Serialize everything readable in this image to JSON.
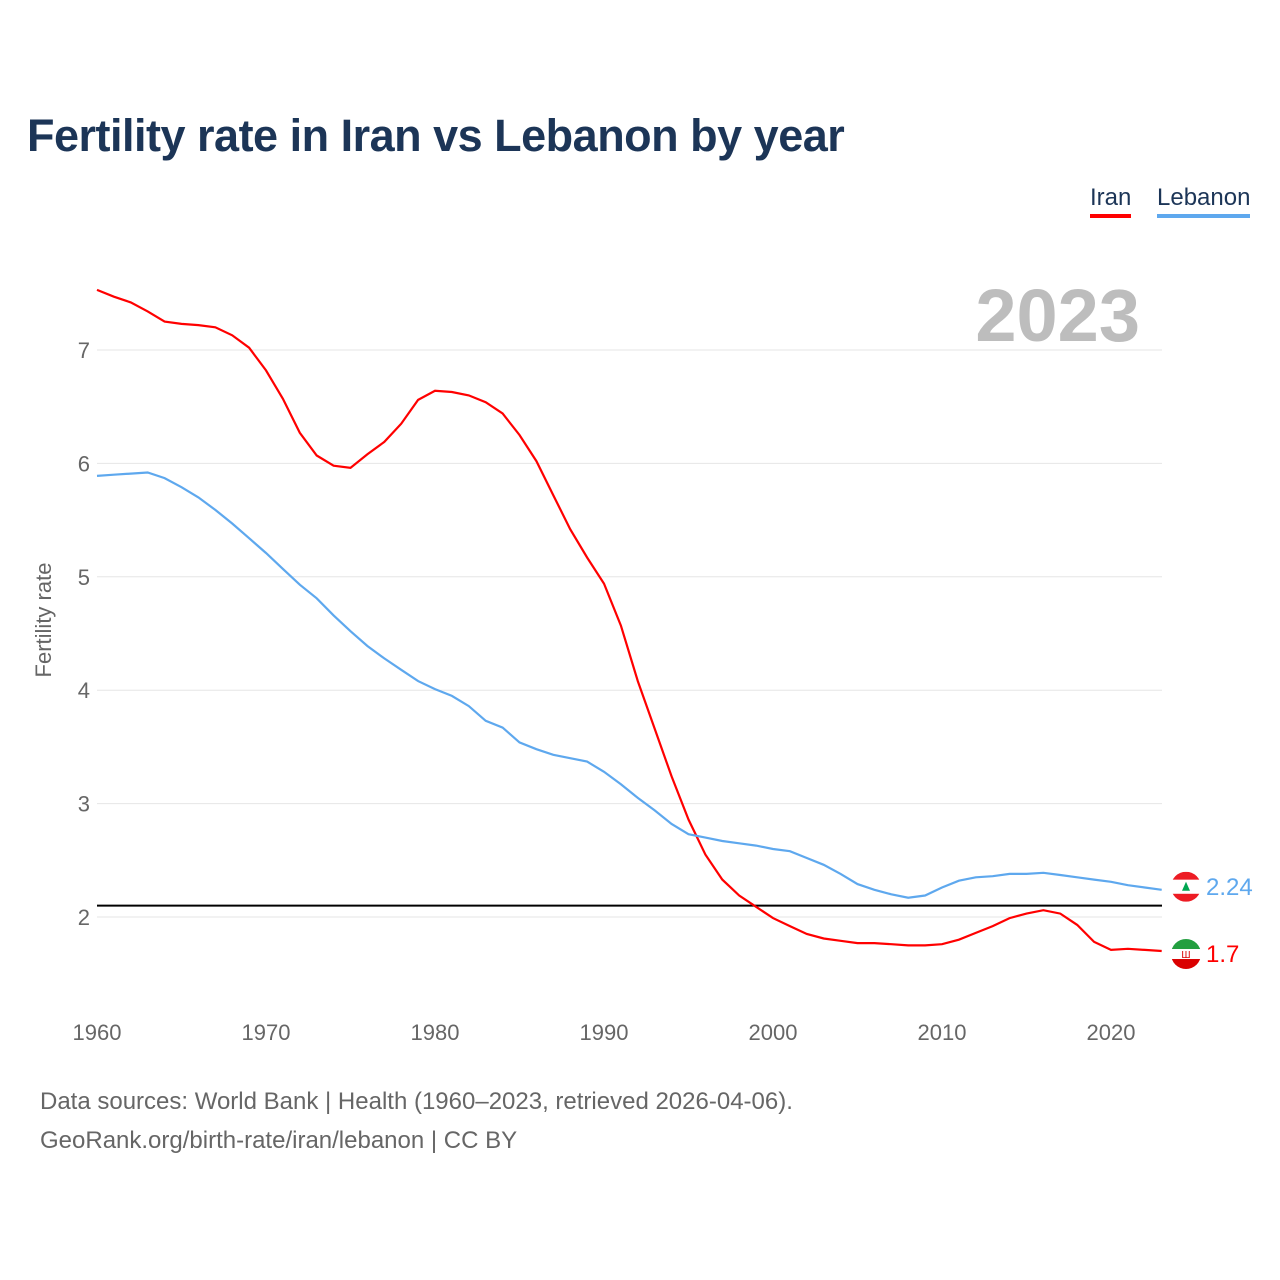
{
  "title": "Fertility rate in Iran vs Lebanon by year",
  "legend": [
    "Iran",
    "Lebanon"
  ],
  "footer": {
    "line1": "Data sources: World Bank | Health (1960–2023, retrieved 2026-04-06).",
    "line2": "GeoRank.org/birth-rate/iran/lebanon | CC BY"
  },
  "chart_data": {
    "type": "line",
    "title": "Fertility rate in Iran vs Lebanon by year",
    "xlabel": "",
    "ylabel": "Fertility rate",
    "year_watermark": "2023",
    "xlim": [
      1960,
      2023
    ],
    "ylim": [
      1.2,
      7.6
    ],
    "xticks": [
      1960,
      1970,
      1980,
      1990,
      2000,
      2010,
      2020
    ],
    "yticks": [
      2,
      3,
      4,
      5,
      6,
      7
    ],
    "reference_line": 2.1,
    "grid": true,
    "legend_position": "top-right",
    "x_start": 1960,
    "series": [
      {
        "name": "Iran",
        "color": "#ff0000",
        "end_label": "1.7",
        "values": [
          7.53,
          7.47,
          7.42,
          7.34,
          7.25,
          7.23,
          7.22,
          7.2,
          7.13,
          7.02,
          6.82,
          6.57,
          6.27,
          6.07,
          5.98,
          5.96,
          6.08,
          6.19,
          6.35,
          6.56,
          6.64,
          6.63,
          6.6,
          6.54,
          6.44,
          6.25,
          6.02,
          5.72,
          5.42,
          5.17,
          4.94,
          4.57,
          4.08,
          3.66,
          3.24,
          2.86,
          2.55,
          2.33,
          2.19,
          2.09,
          1.99,
          1.92,
          1.85,
          1.81,
          1.79,
          1.77,
          1.77,
          1.76,
          1.75,
          1.75,
          1.76,
          1.8,
          1.86,
          1.92,
          1.99,
          2.03,
          2.06,
          2.03,
          1.93,
          1.78,
          1.71,
          1.72,
          1.71,
          1.7
        ]
      },
      {
        "name": "Lebanon",
        "color": "#5ea8ee",
        "end_label": "2.24",
        "values": [
          5.89,
          5.9,
          5.91,
          5.92,
          5.87,
          5.79,
          5.7,
          5.59,
          5.47,
          5.34,
          5.21,
          5.07,
          4.93,
          4.81,
          4.66,
          4.52,
          4.39,
          4.28,
          4.18,
          4.08,
          4.01,
          3.95,
          3.86,
          3.73,
          3.67,
          3.54,
          3.48,
          3.43,
          3.4,
          3.37,
          3.28,
          3.17,
          3.05,
          2.94,
          2.82,
          2.73,
          2.7,
          2.67,
          2.65,
          2.63,
          2.6,
          2.58,
          2.52,
          2.46,
          2.38,
          2.29,
          2.24,
          2.2,
          2.17,
          2.19,
          2.26,
          2.32,
          2.35,
          2.36,
          2.38,
          2.38,
          2.39,
          2.37,
          2.35,
          2.33,
          2.31,
          2.28,
          2.26,
          2.24
        ]
      }
    ]
  }
}
